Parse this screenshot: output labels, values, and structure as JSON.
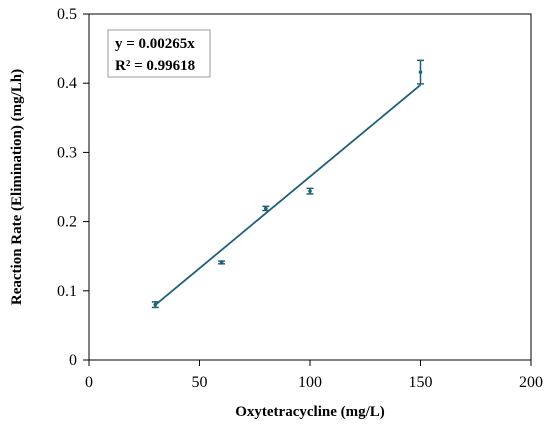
{
  "chart_data": {
    "type": "scatter",
    "xlabel": "Oxytetracycline (mg/L)",
    "ylabel": "Reaction Rate (Elimination) (mg/Lh)",
    "xlim": [
      0,
      200
    ],
    "ylim": [
      0,
      0.5
    ],
    "x_ticks": [
      "0",
      "50",
      "100",
      "150",
      "200"
    ],
    "y_ticks": [
      "0",
      "0.1",
      "0.2",
      "0.3",
      "0.4",
      "0.5"
    ],
    "grid": false,
    "legend": "none",
    "colors": {
      "series": "#1f5f7a",
      "trendline": "#1f5f7a",
      "axis": "#000000"
    },
    "series": [
      {
        "x": [
          30,
          60,
          80,
          100,
          150
        ],
        "y": [
          0.08,
          0.141,
          0.219,
          0.244,
          0.416
        ],
        "y_err": [
          0.004,
          0.002,
          0.003,
          0.004,
          0.017
        ]
      }
    ],
    "trendline": {
      "slope": 0.00265,
      "intercept": 0,
      "x_range": [
        30,
        150
      ]
    },
    "annotations": [
      "y = 0.00265x",
      "R² = 0.99618"
    ]
  }
}
